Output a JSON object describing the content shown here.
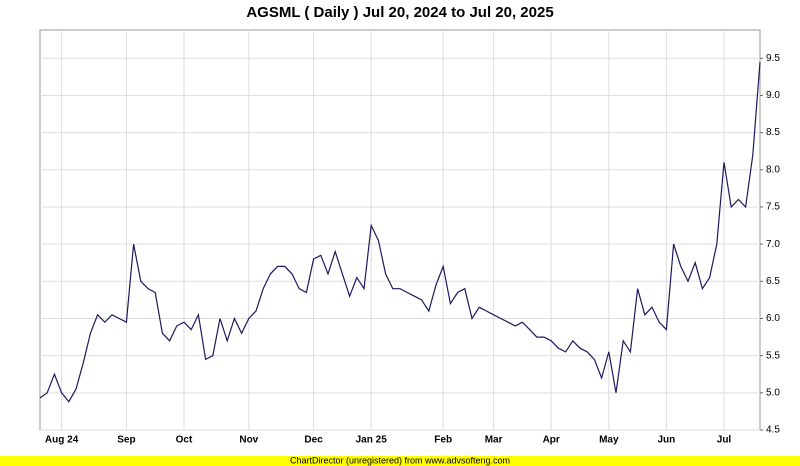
{
  "chart_data": {
    "type": "line",
    "title": "AGSML ( Daily ) Jul 20, 2024 to Jul 20, 2025",
    "footer": "ChartDirector (unregistered) from www.advsofteng.com",
    "categories": [
      null,
      null,
      null,
      "Aug 24",
      null,
      null,
      null,
      null,
      null,
      null,
      null,
      null,
      "Sep",
      null,
      null,
      null,
      null,
      null,
      null,
      null,
      "Oct",
      null,
      null,
      null,
      null,
      null,
      null,
      null,
      null,
      "Nov",
      null,
      null,
      null,
      null,
      null,
      null,
      null,
      null,
      "Dec",
      null,
      null,
      null,
      null,
      null,
      null,
      null,
      "Jan 25",
      null,
      null,
      null,
      null,
      null,
      null,
      null,
      null,
      null,
      "Feb",
      null,
      null,
      null,
      null,
      null,
      null,
      "Mar",
      null,
      null,
      null,
      null,
      null,
      null,
      null,
      "Apr",
      null,
      null,
      null,
      null,
      null,
      null,
      null,
      "May",
      null,
      null,
      null,
      null,
      null,
      null,
      null,
      "Jun",
      null,
      null,
      null,
      null,
      null,
      null,
      null,
      "Jul",
      null,
      null,
      null,
      null,
      null
    ],
    "series": [
      {
        "color": "#1a1a5e",
        "values": [
          4.93,
          5.0,
          5.25,
          5.0,
          4.88,
          5.05,
          5.4,
          5.8,
          6.05,
          5.95,
          6.05,
          6.0,
          5.95,
          7.0,
          6.5,
          6.4,
          6.35,
          5.8,
          5.7,
          5.9,
          5.95,
          5.85,
          6.05,
          5.45,
          5.5,
          6.0,
          5.7,
          6.0,
          5.8,
          6.0,
          6.1,
          6.4,
          6.6,
          6.7,
          6.7,
          6.6,
          6.4,
          6.35,
          6.8,
          6.85,
          6.6,
          6.9,
          6.6,
          6.3,
          6.55,
          6.4,
          7.25,
          7.05,
          6.6,
          6.4,
          6.4,
          6.35,
          6.3,
          6.25,
          6.1,
          6.45,
          6.7,
          6.2,
          6.35,
          6.4,
          6.0,
          6.15,
          6.1,
          6.05,
          6.0,
          5.95,
          5.9,
          5.95,
          5.85,
          5.75,
          5.75,
          5.7,
          5.6,
          5.55,
          5.7,
          5.6,
          5.55,
          5.45,
          5.2,
          5.55,
          5.0,
          5.7,
          5.55,
          6.4,
          6.05,
          6.15,
          5.95,
          5.85,
          7.0,
          6.7,
          6.5,
          6.75,
          6.4,
          6.55,
          7.0,
          8.1,
          7.5,
          7.6,
          7.5,
          8.2,
          9.45
        ]
      }
    ],
    "ylim": [
      4.5,
      9.88
    ],
    "yticks": [
      4.5,
      {
        "value": 5,
        "label": "5.0"
      },
      5.5,
      {
        "value": 6,
        "label": "6.0"
      },
      6.5,
      {
        "value": 7,
        "label": "7.0"
      },
      7.5,
      {
        "value": 8,
        "label": "8.0"
      },
      8.5,
      {
        "value": 9,
        "label": "9.0"
      },
      9.5
    ],
    "grid": true
  }
}
